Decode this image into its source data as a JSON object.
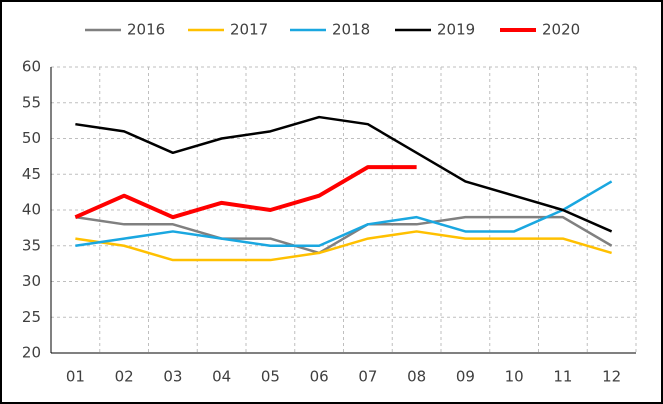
{
  "chart_data": {
    "type": "line",
    "categories": [
      "01",
      "02",
      "03",
      "04",
      "05",
      "06",
      "07",
      "08",
      "09",
      "10",
      "11",
      "12"
    ],
    "series": [
      {
        "name": "2016",
        "color": "#808080",
        "values": [
          39,
          38,
          38,
          36,
          36,
          34,
          38,
          38,
          39,
          39,
          39,
          35
        ]
      },
      {
        "name": "2017",
        "color": "#ffc000",
        "values": [
          36,
          35,
          33,
          33,
          33,
          34,
          36,
          37,
          36,
          36,
          36,
          34
        ]
      },
      {
        "name": "2018",
        "color": "#1aa7e0",
        "values": [
          35,
          36,
          37,
          36,
          35,
          35,
          38,
          39,
          37,
          37,
          40,
          44
        ]
      },
      {
        "name": "2019",
        "color": "#000000",
        "values": [
          52,
          51,
          48,
          50,
          51,
          53,
          52,
          48,
          44,
          42,
          40,
          37
        ]
      },
      {
        "name": "2020",
        "color": "#ff0000",
        "values": [
          39,
          42,
          39,
          41,
          40,
          42,
          46,
          46,
          null,
          null,
          null,
          null
        ]
      }
    ],
    "ylim": [
      20,
      60
    ],
    "yticks": [
      20,
      25,
      30,
      35,
      40,
      45,
      50,
      55,
      60
    ],
    "grid": true,
    "legend": "top"
  }
}
